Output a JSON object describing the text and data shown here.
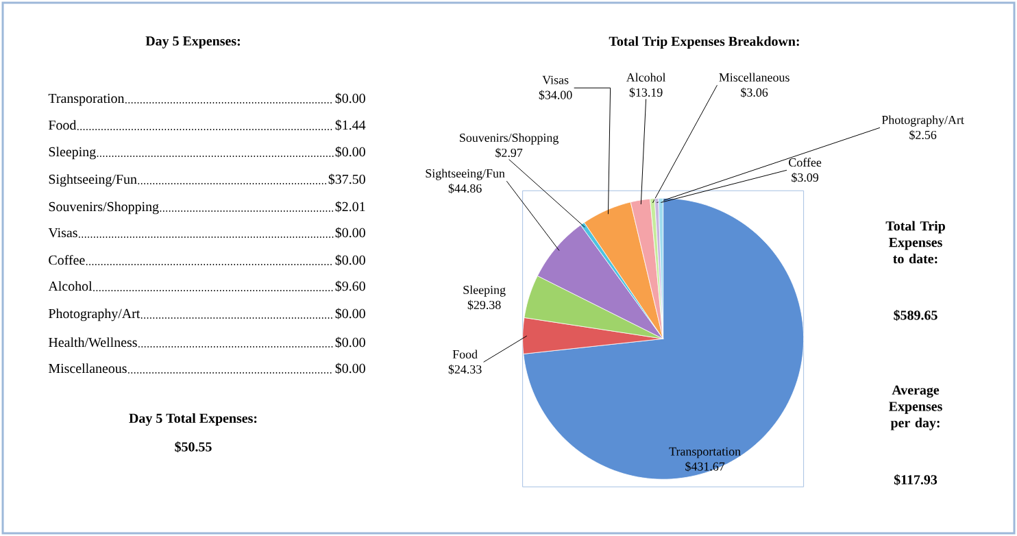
{
  "chart_data": [
    {
      "type": "other",
      "title": "Day 5 Expenses:",
      "categories": [
        "Transporation",
        "Food",
        "Sleeping",
        "Sightseeing/Fun",
        "Souvenirs/Shopping",
        "Visas",
        "Coffee",
        "Alcohol",
        "Photography/Art",
        "Health/Wellness",
        "Miscellaneous"
      ],
      "value_labels": [
        "$0.00",
        "$1.44",
        "$0.00",
        "$37.50",
        "$2.01",
        "$0.00",
        "$0.00",
        "$9.60",
        "$0.00",
        "$0.00",
        "$0.00"
      ],
      "annotations": [
        "Day 5 Total Expenses:",
        "$50.55"
      ]
    },
    {
      "type": "pie",
      "title": "Total  Trip Expenses Breakdown:",
      "categories": [
        "Transportation",
        "Food",
        "Sleeping",
        "Sightseeing/Fun",
        "Souvenirs/Shopping",
        "Visas",
        null,
        "Alcohol",
        "Miscellaneous",
        "Photography/Art",
        "Coffee"
      ],
      "values": [
        431.67,
        24.33,
        29.38,
        44.86,
        2.97,
        34.0,
        null,
        13.19,
        3.06,
        2.56,
        3.09
      ],
      "value_labels": [
        "$431.67",
        "$24.33",
        "$29.38",
        "$44.86",
        "$2.97",
        "$34.00",
        null,
        "$13.19",
        "$3.06",
        "$2.56",
        "$3.09"
      ],
      "colors": [
        "#5b8fd4",
        "#e05a5a",
        "#9fd36a",
        "#a27cc8",
        "#4fc3e0",
        "#f8a04a",
        "#a9c4ec",
        "#f4a3a8",
        "#c6ec9c",
        "#c7b6e0",
        "#9fdcef"
      ]
    },
    {
      "type": "other",
      "annotations": [
        "Total Trip Expenses to date:",
        "$589.65",
        "Average Expenses per day:",
        "$117.93"
      ]
    }
  ]
}
